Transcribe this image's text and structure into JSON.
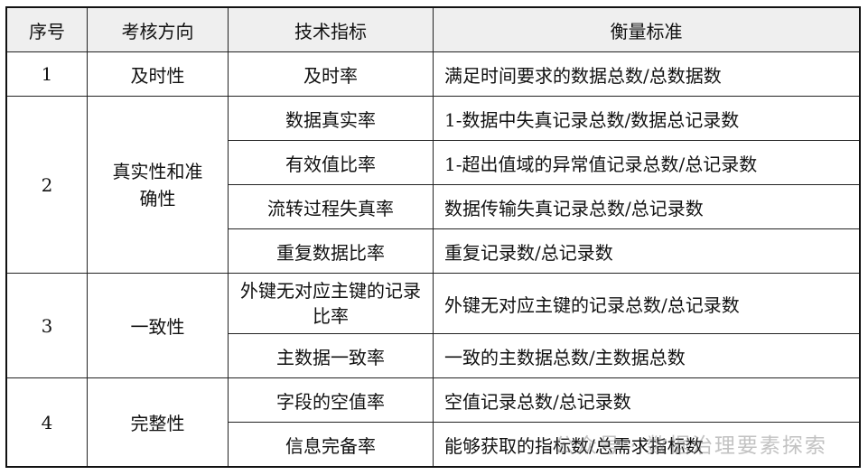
{
  "headers": [
    "序号",
    "考核方向",
    "技术指标",
    "衡量标准"
  ],
  "groups": [
    {
      "no": "1",
      "direction": "及时性",
      "rows": [
        {
          "metric": "及时率",
          "standard": "满足时间要求的数据总数/总数据数"
        }
      ]
    },
    {
      "no": "2",
      "direction": "真实性和准确性",
      "rows": [
        {
          "metric": "数据真实率",
          "standard": "1-数据中失真记录总数/数据总记录数"
        },
        {
          "metric": "有效值比率",
          "standard": "1-超出值域的异常值记录总数/总记录数"
        },
        {
          "metric": "流转过程失真率",
          "standard": "数据传输失真记录总数/总记录数"
        },
        {
          "metric": "重复数据比率",
          "standard": "重复记录数/总记录数"
        }
      ]
    },
    {
      "no": "3",
      "direction": "一致性",
      "rows": [
        {
          "metric": "外键无对应主键的记录比率",
          "standard": "外键无对应主键的记录总数/总记录数"
        },
        {
          "metric": "主数据一致率",
          "standard": "一致的主数据总数/主数据总数"
        }
      ]
    },
    {
      "no": "4",
      "direction": "完整性",
      "rows": [
        {
          "metric": "字段的空值率",
          "standard": "空值记录总数/总记录数"
        },
        {
          "metric": "信息完备率",
          "standard": "能够获取的指标数/总需求指标数"
        }
      ]
    }
  ],
  "watermark": "公众号 · 数据治理要素探索"
}
